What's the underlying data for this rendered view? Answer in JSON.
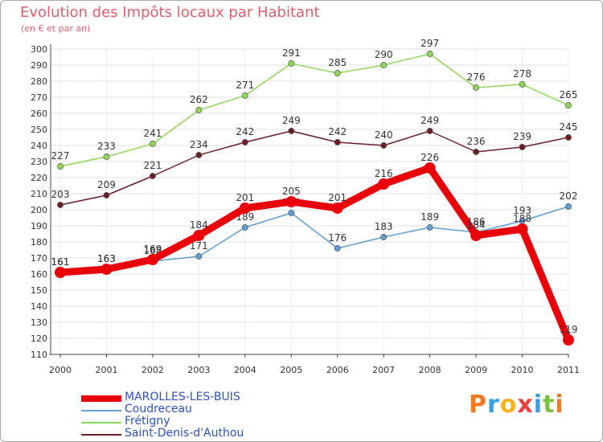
{
  "title": "Evolution des Impôts locaux par Habitant",
  "subtitle": "(en € et par an)",
  "logo": [
    "P",
    "r",
    "o",
    "x",
    "i",
    "t",
    "i"
  ],
  "logo_colors": [
    "#f47a1f",
    "#3aa0dd",
    "#f4b41f",
    "#e8403a",
    "#3aa0dd",
    "#7cc242",
    "#f47a1f"
  ],
  "chart_data": {
    "type": "line",
    "title": "Evolution des Impôts locaux par Habitant",
    "subtitle": "(en € et par an)",
    "xlabel": "",
    "ylabel": "",
    "ylim": [
      110,
      300
    ],
    "y_ticks": [
      110,
      120,
      130,
      140,
      150,
      160,
      170,
      180,
      190,
      200,
      210,
      220,
      230,
      240,
      250,
      260,
      270,
      280,
      290,
      300
    ],
    "grid": true,
    "x": [
      "2000",
      "2001",
      "2002",
      "2003",
      "2004",
      "2005",
      "2006",
      "2007",
      "2008",
      "2009",
      "2010",
      "2011"
    ],
    "series": [
      {
        "name": "MAROLLES-LES-BUIS",
        "color": "#e8000b",
        "emphasis": true,
        "values": [
          161,
          163,
          169,
          184,
          201,
          205,
          201,
          216,
          226,
          184,
          188,
          119
        ]
      },
      {
        "name": "Coudreceau",
        "color": "#5f9fd3",
        "emphasis": false,
        "values": [
          161,
          163,
          168,
          171,
          189,
          198,
          176,
          183,
          189,
          186,
          193,
          202
        ]
      },
      {
        "name": "Frétigny",
        "color": "#8fd65a",
        "emphasis": false,
        "values": [
          227,
          233,
          241,
          262,
          271,
          291,
          285,
          290,
          297,
          276,
          278,
          265
        ]
      },
      {
        "name": "Saint-Denis-d'Authou",
        "color": "#6b1f25",
        "emphasis": false,
        "values": [
          203,
          209,
          221,
          234,
          242,
          249,
          242,
          240,
          249,
          236,
          239,
          245
        ]
      }
    ]
  }
}
